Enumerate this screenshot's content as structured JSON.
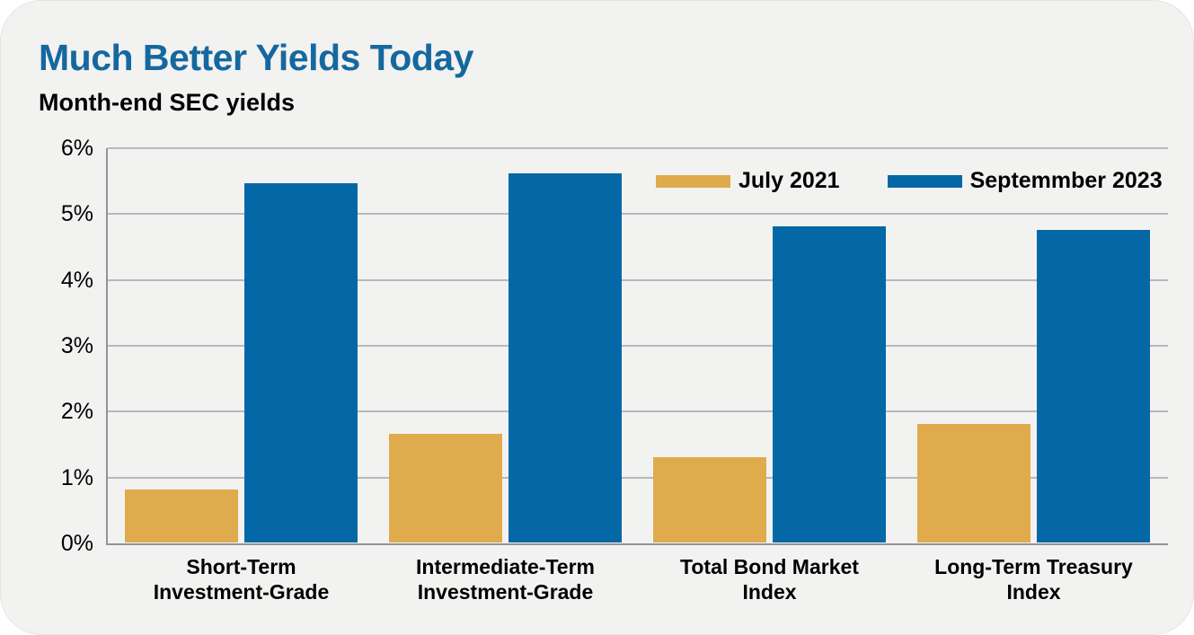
{
  "header": {
    "title": "Much Better Yields Today",
    "subtitle": "Month-end SEC yields"
  },
  "colors": {
    "title_blue": "#15689f",
    "bar_gold": "#dfab4d",
    "bar_blue": "#0568a6",
    "card_background": "#f2f2f1",
    "gridline": "#b3b9bf",
    "axis": "#8f959b"
  },
  "chart_data": {
    "type": "bar",
    "title": "Much Better Yields Today",
    "subtitle": "Month-end SEC yields",
    "categories": [
      [
        "Short-Term",
        "Investment-Grade"
      ],
      [
        "Intermediate-Term",
        "Investment-Grade"
      ],
      [
        "Total Bond Market",
        "Index"
      ],
      [
        "Long-Term Treasury",
        "Index"
      ]
    ],
    "series": [
      {
        "name": "July 2021",
        "color": "#dfab4d",
        "values": [
          0.8,
          1.65,
          1.3,
          1.8
        ]
      },
      {
        "name": "Septemmber 2023",
        "color": "#0568a6",
        "values": [
          5.45,
          5.6,
          4.8,
          4.75
        ]
      }
    ],
    "unit": "%",
    "ylim": [
      0,
      6
    ],
    "yticks": [
      "6%",
      "5%",
      "4%",
      "3%",
      "2%",
      "1%",
      "0%"
    ],
    "grid": true,
    "legend_position": "top-right"
  }
}
